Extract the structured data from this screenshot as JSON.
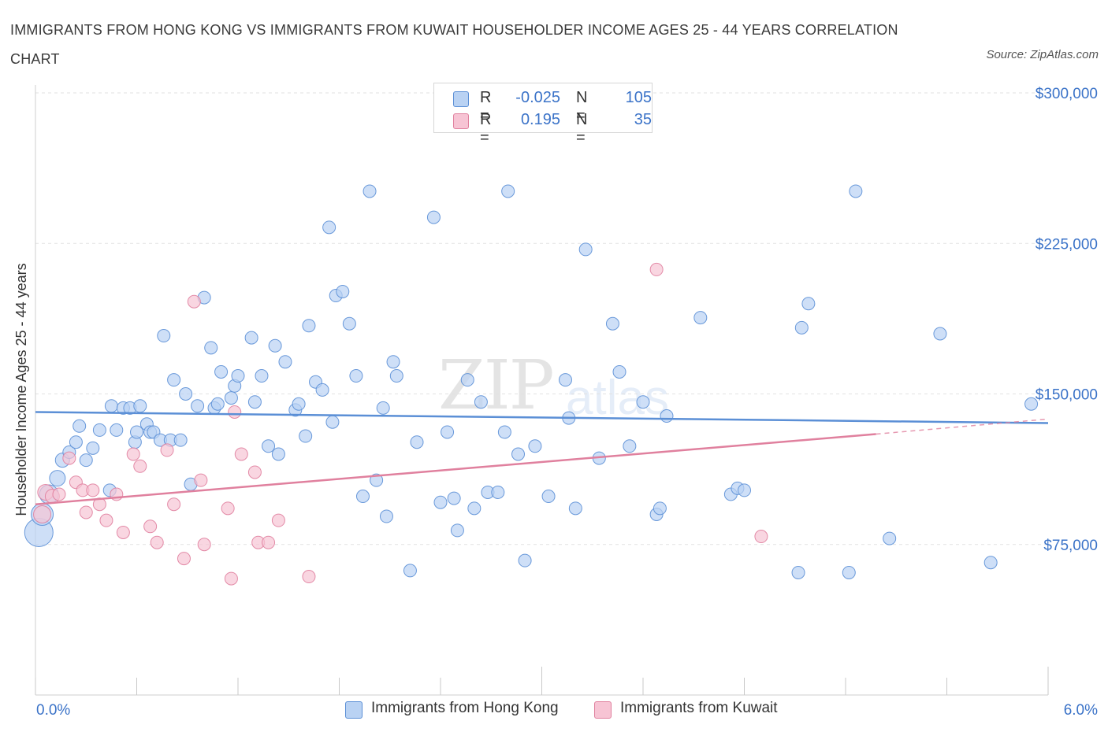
{
  "title": "IMMIGRANTS FROM HONG KONG VS IMMIGRANTS FROM KUWAIT HOUSEHOLDER INCOME AGES 25 - 44 YEARS CORRELATION CHART",
  "source": "Source: ZipAtlas.com",
  "watermark": {
    "zip": "ZIP",
    "atlas": "atlas"
  },
  "legend": {
    "rows": [
      {
        "r_label": "R =",
        "r_value": "-0.025",
        "n_label": "N =",
        "n_value": "105",
        "color": "#b9d2f3",
        "border": "#5b8fd6"
      },
      {
        "r_label": "R =",
        "r_value": "0.195",
        "n_label": "N =",
        "n_value": "35",
        "color": "#f7c4d4",
        "border": "#e0809e"
      }
    ]
  },
  "bottom_legend": [
    "Immigrants from Hong Kong",
    "Immigrants from Kuwait"
  ],
  "chart_data": {
    "type": "scatter",
    "ylabel": "Householder Income Ages 25 - 44 years",
    "xlim": [
      0.0,
      6.0
    ],
    "ylim": [
      0,
      300000
    ],
    "x_tick_labels": [
      "0.0%",
      "6.0%"
    ],
    "y_ticks": [
      {
        "value": 75000,
        "label": "$75,000"
      },
      {
        "value": 150000,
        "label": "$150,000"
      },
      {
        "value": 225000,
        "label": "$225,000"
      },
      {
        "value": 300000,
        "label": "$300,000"
      }
    ],
    "grid": true,
    "series": [
      {
        "name": "Immigrants from Hong Kong",
        "color": "#5b8fd6",
        "fill": "#b9d2f3",
        "trend": {
          "x0": 0.0,
          "y0": 141000,
          "x1": 6.0,
          "y1": 135500
        },
        "points": [
          [
            0.02,
            81000,
            18
          ],
          [
            0.04,
            90000,
            14
          ],
          [
            0.08,
            100000,
            12
          ],
          [
            0.13,
            108000,
            10
          ],
          [
            0.16,
            117000,
            9
          ],
          [
            0.2,
            121000,
            8
          ],
          [
            0.24,
            126000,
            8
          ],
          [
            0.26,
            134000,
            8
          ],
          [
            0.3,
            117000,
            8
          ],
          [
            0.34,
            123000,
            8
          ],
          [
            0.38,
            132000,
            8
          ],
          [
            0.44,
            102000,
            8
          ],
          [
            0.45,
            144000,
            8
          ],
          [
            0.48,
            132000,
            8
          ],
          [
            0.52,
            143000,
            8
          ],
          [
            0.56,
            143000,
            8
          ],
          [
            0.59,
            126000,
            8
          ],
          [
            0.6,
            131000,
            8
          ],
          [
            0.62,
            144000,
            8
          ],
          [
            0.66,
            135000,
            8
          ],
          [
            0.68,
            131000,
            8
          ],
          [
            0.7,
            131000,
            8
          ],
          [
            0.74,
            127000,
            8
          ],
          [
            0.76,
            179000,
            8
          ],
          [
            0.8,
            127000,
            8
          ],
          [
            0.82,
            157000,
            8
          ],
          [
            0.86,
            127000,
            8
          ],
          [
            0.89,
            150000,
            8
          ],
          [
            0.92,
            105000,
            8
          ],
          [
            0.96,
            144000,
            8
          ],
          [
            1.0,
            198000,
            8
          ],
          [
            1.04,
            173000,
            8
          ],
          [
            1.06,
            143000,
            8
          ],
          [
            1.08,
            145000,
            8
          ],
          [
            1.1,
            161000,
            8
          ],
          [
            1.16,
            148000,
            8
          ],
          [
            1.18,
            154000,
            8
          ],
          [
            1.2,
            159000,
            8
          ],
          [
            1.28,
            178000,
            8
          ],
          [
            1.3,
            146000,
            8
          ],
          [
            1.34,
            159000,
            8
          ],
          [
            1.38,
            124000,
            8
          ],
          [
            1.42,
            174000,
            8
          ],
          [
            1.44,
            120000,
            8
          ],
          [
            1.48,
            166000,
            8
          ],
          [
            1.54,
            142000,
            8
          ],
          [
            1.56,
            145000,
            8
          ],
          [
            1.6,
            129000,
            8
          ],
          [
            1.62,
            184000,
            8
          ],
          [
            1.66,
            156000,
            8
          ],
          [
            1.7,
            152000,
            8
          ],
          [
            1.74,
            233000,
            8
          ],
          [
            1.76,
            136000,
            8
          ],
          [
            1.78,
            199000,
            8
          ],
          [
            1.82,
            201000,
            8
          ],
          [
            1.86,
            185000,
            8
          ],
          [
            1.9,
            159000,
            8
          ],
          [
            1.94,
            99000,
            8
          ],
          [
            1.98,
            251000,
            8
          ],
          [
            2.02,
            107000,
            8
          ],
          [
            2.06,
            143000,
            8
          ],
          [
            2.08,
            89000,
            8
          ],
          [
            2.12,
            166000,
            8
          ],
          [
            2.14,
            159000,
            8
          ],
          [
            2.22,
            62000,
            8
          ],
          [
            2.26,
            126000,
            8
          ],
          [
            2.36,
            238000,
            8
          ],
          [
            2.4,
            96000,
            8
          ],
          [
            2.44,
            131000,
            8
          ],
          [
            2.48,
            98000,
            8
          ],
          [
            2.5,
            82000,
            8
          ],
          [
            2.56,
            157000,
            8
          ],
          [
            2.6,
            93000,
            8
          ],
          [
            2.64,
            146000,
            8
          ],
          [
            2.68,
            101000,
            8
          ],
          [
            2.74,
            101000,
            8
          ],
          [
            2.78,
            131000,
            8
          ],
          [
            2.8,
            251000,
            8
          ],
          [
            2.86,
            120000,
            8
          ],
          [
            2.9,
            67000,
            8
          ],
          [
            2.96,
            124000,
            8
          ],
          [
            3.04,
            99000,
            8
          ],
          [
            3.14,
            157000,
            8
          ],
          [
            3.16,
            138000,
            8
          ],
          [
            3.2,
            93000,
            8
          ],
          [
            3.26,
            222000,
            8
          ],
          [
            3.34,
            118000,
            8
          ],
          [
            3.42,
            185000,
            8
          ],
          [
            3.46,
            161000,
            8
          ],
          [
            3.52,
            124000,
            8
          ],
          [
            3.6,
            146000,
            8
          ],
          [
            3.68,
            90000,
            8
          ],
          [
            3.7,
            93000,
            8
          ],
          [
            3.74,
            139000,
            8
          ],
          [
            3.94,
            188000,
            8
          ],
          [
            4.12,
            100000,
            8
          ],
          [
            4.16,
            103000,
            8
          ],
          [
            4.2,
            102000,
            8
          ],
          [
            4.52,
            61000,
            8
          ],
          [
            4.54,
            183000,
            8
          ],
          [
            4.58,
            195000,
            8
          ],
          [
            4.82,
            61000,
            8
          ],
          [
            4.86,
            251000,
            8
          ],
          [
            5.06,
            78000,
            8
          ],
          [
            5.36,
            180000,
            8
          ],
          [
            5.66,
            66000,
            8
          ],
          [
            5.9,
            145000,
            8
          ]
        ]
      },
      {
        "name": "Immigrants from Kuwait",
        "color": "#e0809e",
        "fill": "#f7c4d4",
        "trend": {
          "x0": 0.0,
          "y0": 95000,
          "x1": 4.98,
          "y1": 130000
        },
        "trend_ext": {
          "x0": 4.98,
          "y0": 130000,
          "x1": 6.0,
          "y1": 137500
        },
        "points": [
          [
            0.04,
            90000,
            11
          ],
          [
            0.06,
            101000,
            10
          ],
          [
            0.1,
            99000,
            9
          ],
          [
            0.14,
            100000,
            8
          ],
          [
            0.2,
            118000,
            8
          ],
          [
            0.24,
            106000,
            8
          ],
          [
            0.28,
            102000,
            8
          ],
          [
            0.3,
            91000,
            8
          ],
          [
            0.34,
            102000,
            8
          ],
          [
            0.38,
            95000,
            8
          ],
          [
            0.42,
            87000,
            8
          ],
          [
            0.48,
            100000,
            8
          ],
          [
            0.52,
            81000,
            8
          ],
          [
            0.58,
            120000,
            8
          ],
          [
            0.62,
            114000,
            8
          ],
          [
            0.68,
            84000,
            8
          ],
          [
            0.72,
            76000,
            8
          ],
          [
            0.78,
            122000,
            8
          ],
          [
            0.82,
            95000,
            8
          ],
          [
            0.88,
            68000,
            8
          ],
          [
            0.94,
            196000,
            8
          ],
          [
            0.98,
            107000,
            8
          ],
          [
            1.0,
            75000,
            8
          ],
          [
            1.14,
            93000,
            8
          ],
          [
            1.16,
            58000,
            8
          ],
          [
            1.18,
            141000,
            8
          ],
          [
            1.22,
            120000,
            8
          ],
          [
            1.3,
            111000,
            8
          ],
          [
            1.32,
            76000,
            8
          ],
          [
            1.38,
            76000,
            8
          ],
          [
            1.44,
            87000,
            8
          ],
          [
            1.62,
            59000,
            8
          ],
          [
            3.68,
            212000,
            8
          ],
          [
            4.3,
            79000,
            8
          ]
        ]
      }
    ]
  }
}
